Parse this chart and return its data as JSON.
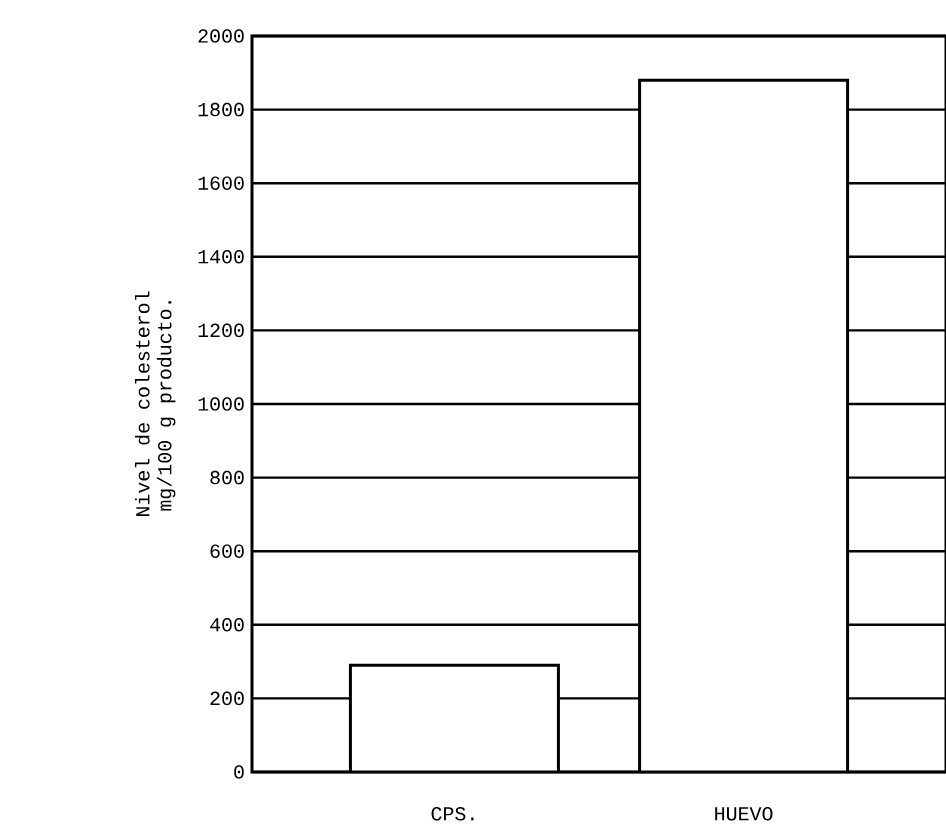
{
  "chart_data": {
    "type": "bar",
    "ylabel": "Nivel de colesterol\nmg/100 g producto.",
    "categories": [
      "CPS.",
      "HUEVO"
    ],
    "values": [
      290,
      1880
    ],
    "color": "#ffffff",
    "ylim": [
      0,
      2000
    ],
    "yticks": [
      0,
      200,
      400,
      600,
      800,
      1000,
      1200,
      1400,
      1600,
      1800,
      2000
    ],
    "grid": "y"
  }
}
